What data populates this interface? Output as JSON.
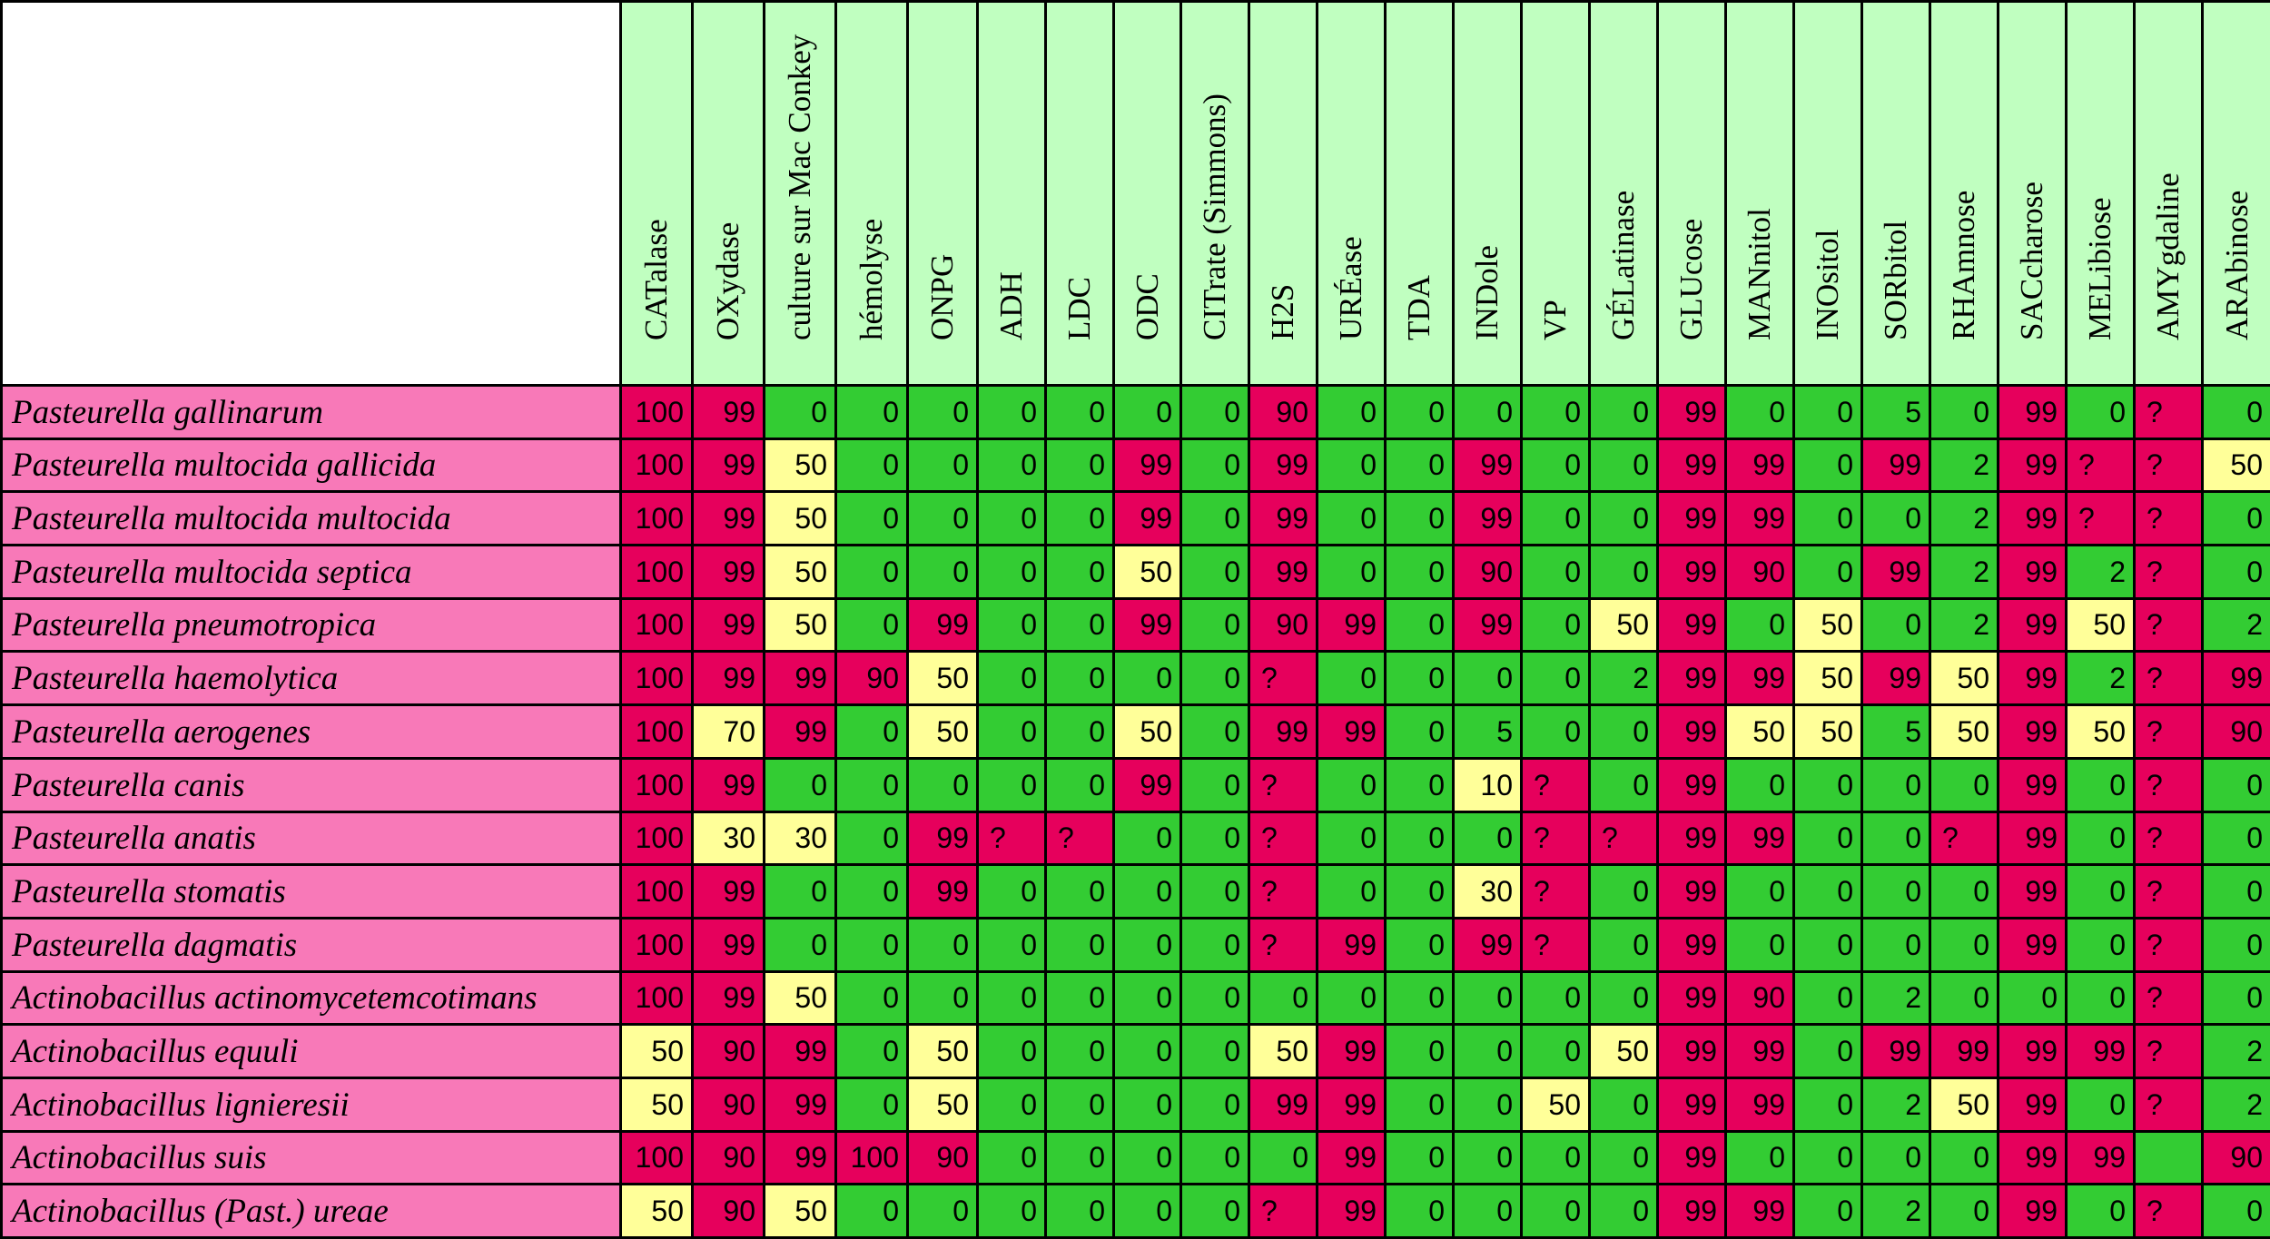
{
  "colors": {
    "high": "#e6005c",
    "mid": "#ffff99",
    "low": "#33cc33",
    "header": "#c0ffc0",
    "rowlabel": "#f879b8"
  },
  "columns": [
    "CATalase",
    "OXydase",
    "culture sur Mac Conkey",
    "hémolyse",
    "ONPG",
    "ADH",
    "LDC",
    "ODC",
    "CITrate (Simmons)",
    "H2S",
    "URÉase",
    "TDA",
    "INDole",
    "VP",
    "GÉLatinase",
    "GLUcose",
    "MANnitol",
    "INOsitol",
    "SORbitol",
    "RHAmnose",
    "SACcharose",
    "MELibiose",
    "AMYgdaline",
    "ARAbinose"
  ],
  "rows": [
    {
      "name": "Pasteurella gallinarum",
      "values": [
        "100",
        "99",
        "0",
        "0",
        "0",
        "0",
        "0",
        "0",
        "0",
        "90",
        "0",
        "0",
        "0",
        "0",
        "0",
        "99",
        "0",
        "0",
        "5",
        "0",
        "99",
        "0",
        "?",
        "0"
      ]
    },
    {
      "name": "Pasteurella multocida gallicida",
      "values": [
        "100",
        "99",
        "50",
        "0",
        "0",
        "0",
        "0",
        "99",
        "0",
        "99",
        "0",
        "0",
        "99",
        "0",
        "0",
        "99",
        "99",
        "0",
        "99",
        "2",
        "99",
        "?",
        "?",
        "50"
      ]
    },
    {
      "name": "Pasteurella multocida multocida",
      "values": [
        "100",
        "99",
        "50",
        "0",
        "0",
        "0",
        "0",
        "99",
        "0",
        "99",
        "0",
        "0",
        "99",
        "0",
        "0",
        "99",
        "99",
        "0",
        "0",
        "2",
        "99",
        "?",
        "?",
        "0"
      ]
    },
    {
      "name": "Pasteurella multocida septica",
      "values": [
        "100",
        "99",
        "50",
        "0",
        "0",
        "0",
        "0",
        "50",
        "0",
        "99",
        "0",
        "0",
        "90",
        "0",
        "0",
        "99",
        "90",
        "0",
        "99",
        "2",
        "99",
        "2",
        "?",
        "0"
      ]
    },
    {
      "name": "Pasteurella pneumotropica",
      "values": [
        "100",
        "99",
        "50",
        "0",
        "99",
        "0",
        "0",
        "99",
        "0",
        "90",
        "99",
        "0",
        "99",
        "0",
        "50",
        "99",
        "0",
        "50",
        "0",
        "2",
        "99",
        "50",
        "?",
        "2"
      ]
    },
    {
      "name": "Pasteurella haemolytica",
      "values": [
        "100",
        "99",
        "99",
        "90",
        "50",
        "0",
        "0",
        "0",
        "0",
        "?",
        "0",
        "0",
        "0",
        "0",
        "2",
        "99",
        "99",
        "50",
        "99",
        "50",
        "99",
        "2",
        "?",
        "99"
      ]
    },
    {
      "name": "Pasteurella aerogenes",
      "values": [
        "100",
        "70",
        "99",
        "0",
        "50",
        "0",
        "0",
        "50",
        "0",
        "99",
        "99",
        "0",
        "5",
        "0",
        "0",
        "99",
        "50",
        "50",
        "5",
        "50",
        "99",
        "50",
        "?",
        "90"
      ]
    },
    {
      "name": "Pasteurella canis",
      "values": [
        "100",
        "99",
        "0",
        "0",
        "0",
        "0",
        "0",
        "99",
        "0",
        "?",
        "0",
        "0",
        "10",
        "?",
        "0",
        "99",
        "0",
        "0",
        "0",
        "0",
        "99",
        "0",
        "?",
        "0"
      ]
    },
    {
      "name": "Pasteurella anatis",
      "values": [
        "100",
        "30",
        "30",
        "0",
        "99",
        "?",
        "?",
        "0",
        "0",
        "?",
        "0",
        "0",
        "0",
        "?",
        "?",
        "99",
        "99",
        "0",
        "0",
        "?",
        "99",
        "0",
        "?",
        "0"
      ]
    },
    {
      "name": "Pasteurella stomatis",
      "values": [
        "100",
        "99",
        "0",
        "0",
        "99",
        "0",
        "0",
        "0",
        "0",
        "?",
        "0",
        "0",
        "30",
        "?",
        "0",
        "99",
        "0",
        "0",
        "0",
        "0",
        "99",
        "0",
        "?",
        "0"
      ]
    },
    {
      "name": "Pasteurella dagmatis",
      "values": [
        "100",
        "99",
        "0",
        "0",
        "0",
        "0",
        "0",
        "0",
        "0",
        "?",
        "99",
        "0",
        "99",
        "?",
        "0",
        "99",
        "0",
        "0",
        "0",
        "0",
        "99",
        "0",
        "?",
        "0"
      ]
    },
    {
      "name": "Actinobacillus actinomycetemcotimans",
      "values": [
        "100",
        "99",
        "50",
        "0",
        "0",
        "0",
        "0",
        "0",
        "0",
        "0",
        "0",
        "0",
        "0",
        "0",
        "0",
        "99",
        "90",
        "0",
        "2",
        "0",
        "0",
        "0",
        "?",
        "0"
      ]
    },
    {
      "name": "Actinobacillus equuli",
      "values": [
        "50",
        "90",
        "99",
        "0",
        "50",
        "0",
        "0",
        "0",
        "0",
        "50",
        "99",
        "0",
        "0",
        "0",
        "50",
        "99",
        "99",
        "0",
        "99",
        "99",
        "99",
        "99",
        "?",
        "2"
      ]
    },
    {
      "name": "Actinobacillus  lignieresii",
      "values": [
        "50",
        "90",
        "99",
        "0",
        "50",
        "0",
        "0",
        "0",
        "0",
        "99",
        "99",
        "0",
        "0",
        "50",
        "0",
        "99",
        "99",
        "0",
        "2",
        "50",
        "99",
        "0",
        "?",
        "2"
      ]
    },
    {
      "name": "Actinobacillus suis",
      "values": [
        "100",
        "90",
        "99",
        "100",
        "90",
        "0",
        "0",
        "0",
        "0",
        "0",
        "99",
        "0",
        "0",
        "0",
        "0",
        "99",
        "0",
        "0",
        "0",
        "0",
        "99",
        "99",
        "",
        "90"
      ]
    },
    {
      "name": "Actinobacillus (Past.)  ureae",
      "values": [
        "50",
        "90",
        "50",
        "0",
        "0",
        "0",
        "0",
        "0",
        "0",
        "?",
        "99",
        "0",
        "0",
        "0",
        "0",
        "99",
        "99",
        "0",
        "2",
        "0",
        "99",
        "0",
        "?",
        "0"
      ]
    }
  ]
}
